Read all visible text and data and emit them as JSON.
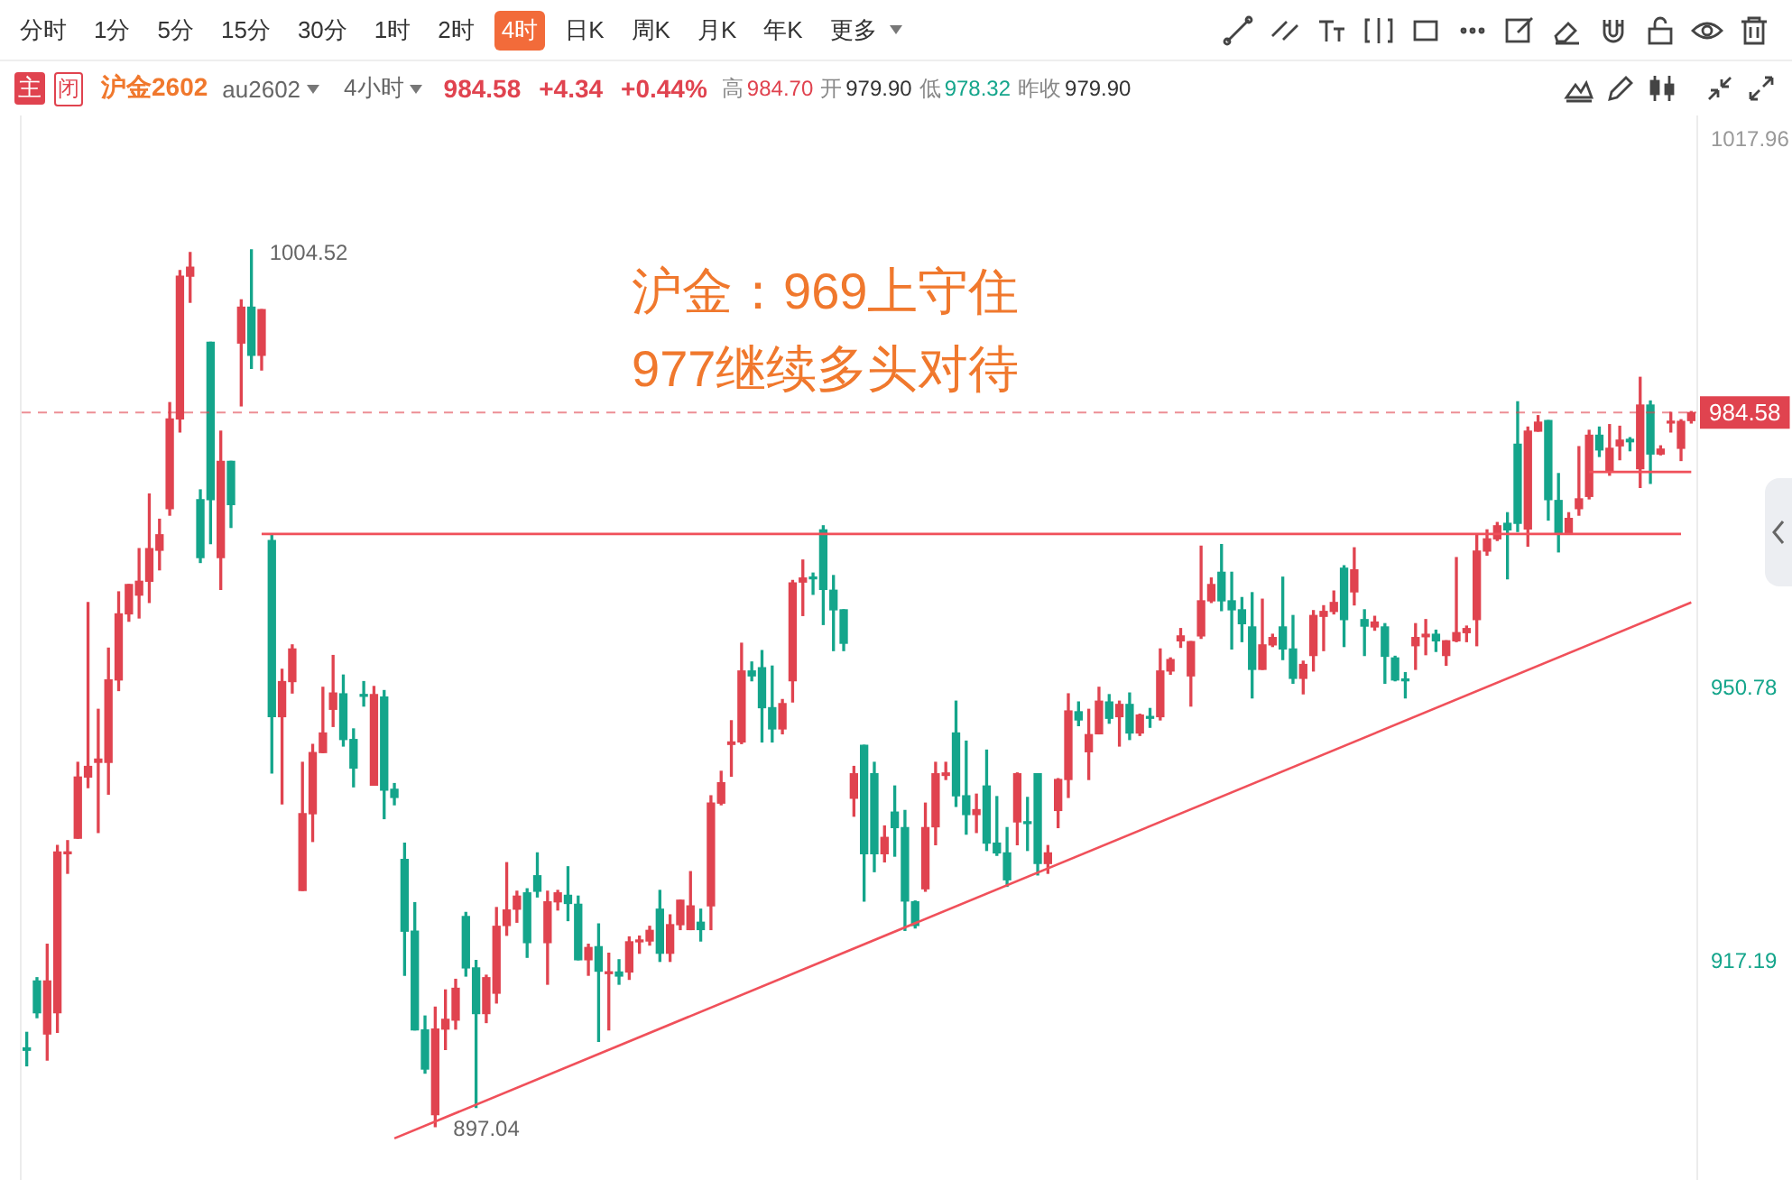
{
  "chart_data": {
    "type": "candlestick",
    "title": "沪金：969上守住",
    "subtitle": "977继续多头对待",
    "categories": [
      null,
      null,
      null,
      null,
      null,
      null,
      null,
      null,
      null,
      null,
      null,
      null,
      null,
      null,
      null,
      null,
      null,
      null,
      null,
      null,
      null,
      null,
      null,
      null,
      null,
      null,
      null,
      null,
      null,
      null,
      null,
      null,
      null,
      null,
      null,
      null,
      null,
      null,
      null,
      null,
      null,
      null,
      null,
      null,
      null,
      null,
      null,
      null,
      null,
      null,
      null,
      null,
      null,
      null,
      null,
      null,
      null,
      null,
      null,
      null,
      null,
      null,
      null,
      null,
      null,
      null,
      null,
      null,
      null,
      null,
      null,
      null,
      null,
      null,
      null,
      null,
      null,
      null,
      null,
      null,
      null,
      null,
      null,
      null,
      null,
      null,
      null,
      null,
      null,
      null,
      null,
      null,
      null,
      null,
      null,
      null,
      null,
      null,
      null,
      null,
      null,
      null,
      null,
      null,
      null,
      null,
      null,
      null,
      null,
      null,
      null,
      null,
      null,
      null,
      null,
      null,
      null,
      null,
      null,
      null,
      null,
      null,
      null,
      null,
      null,
      null,
      null,
      null,
      null,
      null,
      null,
      null,
      null,
      null,
      null,
      null,
      null,
      null,
      null,
      null,
      null,
      null,
      null,
      null,
      null,
      null,
      null,
      null,
      null,
      null,
      null,
      null,
      null,
      null,
      null,
      null,
      null,
      null,
      null,
      null,
      null,
      null,
      null,
      null
    ],
    "ohlc": [
      [
        906.7,
        908.6,
        904.5,
        906.4
      ],
      [
        914.9,
        915.3,
        910.4,
        911.0
      ],
      [
        908.4,
        919.4,
        905.2,
        914.9
      ],
      [
        911.0,
        931.5,
        908.6,
        930.7
      ],
      [
        930.5,
        932.1,
        928.1,
        930.6
      ],
      [
        932.4,
        941.7,
        932.4,
        939.9
      ],
      [
        939.9,
        961.3,
        938.6,
        941.2
      ],
      [
        941.7,
        948.2,
        933.1,
        942.1
      ],
      [
        941.7,
        955.7,
        937.8,
        951.8
      ],
      [
        951.8,
        962.6,
        950.5,
        959.9
      ],
      [
        959.9,
        963.5,
        959.0,
        963.5
      ],
      [
        962.2,
        967.9,
        959.4,
        963.9
      ],
      [
        963.9,
        974.6,
        961.3,
        967.9
      ],
      [
        967.7,
        971.5,
        965.3,
        969.6
      ],
      [
        972.8,
        985.8,
        972.0,
        983.8
      ],
      [
        983.8,
        1002.0,
        982.2,
        1001.3
      ],
      [
        1001.3,
        1004.2,
        998.1,
        1002.4
      ],
      [
        973.9,
        975.1,
        966.2,
        966.8
      ],
      [
        993.2,
        993.2,
        968.5,
        973.9
      ],
      [
        966.8,
        982.3,
        962.9,
        978.6
      ],
      [
        978.6,
        978.6,
        970.5,
        973.3
      ],
      [
        993.1,
        998.4,
        985.4,
        997.5
      ],
      [
        997.5,
        1004.52,
        990.0,
        991.6
      ],
      [
        991.6,
        997.2,
        989.8,
        997.2
      ],
      [
        968.9,
        969.5,
        940.4,
        947.3
      ],
      [
        947.3,
        953.1,
        936.6,
        951.6
      ],
      [
        951.6,
        956.1,
        950.2,
        955.6
      ],
      [
        926.0,
        941.7,
        926.0,
        935.4
      ],
      [
        935.4,
        943.9,
        932.0,
        942.9
      ],
      [
        942.9,
        950.9,
        942.9,
        945.3
      ],
      [
        948.2,
        954.8,
        946.1,
        950.2
      ],
      [
        950.1,
        952.4,
        943.7,
        944.5
      ],
      [
        944.5,
        945.8,
        938.7,
        941.0
      ],
      [
        950.0,
        951.6,
        948.6,
        949.8
      ],
      [
        938.9,
        951.0,
        938.9,
        950.0
      ],
      [
        949.7,
        950.5,
        934.8,
        938.3
      ],
      [
        938.4,
        939.1,
        936.5,
        937.4
      ],
      [
        929.8,
        931.8,
        915.6,
        921.0
      ],
      [
        921.0,
        924.5,
        908.9,
        908.9
      ],
      [
        908.9,
        910.6,
        903.6,
        904.1
      ],
      [
        898.5,
        911.7,
        897.04,
        909.0
      ],
      [
        909.0,
        913.8,
        906.5,
        910.2
      ],
      [
        910.1,
        915.1,
        909.0,
        914.0
      ],
      [
        922.8,
        923.3,
        915.5,
        916.5
      ],
      [
        916.5,
        917.4,
        899.4,
        910.9
      ],
      [
        910.9,
        915.6,
        909.8,
        915.3
      ],
      [
        913.4,
        923.9,
        912.2,
        921.6
      ],
      [
        921.7,
        929.4,
        920.5,
        923.6
      ],
      [
        923.7,
        925.9,
        922.1,
        925.3
      ],
      [
        925.7,
        926.2,
        917.8,
        919.6
      ],
      [
        927.8,
        930.6,
        925.2,
        925.9
      ],
      [
        919.6,
        925.9,
        914.5,
        924.6
      ],
      [
        924.6,
        926.0,
        923.6,
        925.7
      ],
      [
        925.4,
        928.9,
        922.3,
        924.4
      ],
      [
        924.3,
        925.3,
        917.5,
        917.5
      ],
      [
        917.5,
        919.4,
        915.6,
        919.0
      ],
      [
        919.1,
        921.9,
        907.5,
        916.1
      ],
      [
        915.8,
        918.3,
        908.9,
        916.0
      ],
      [
        916.0,
        917.5,
        914.5,
        915.5
      ],
      [
        916.0,
        920.3,
        915.1,
        919.7
      ],
      [
        919.7,
        920.4,
        918.3,
        919.8
      ],
      [
        919.8,
        921.6,
        919.3,
        921.1
      ],
      [
        923.7,
        926.0,
        917.3,
        918.3
      ],
      [
        918.3,
        923.0,
        917.3,
        921.8
      ],
      [
        921.8,
        924.8,
        921.2,
        924.8
      ],
      [
        921.2,
        928.3,
        921.2,
        924.1
      ],
      [
        922.1,
        923.7,
        919.8,
        921.2
      ],
      [
        924.1,
        937.6,
        921.2,
        936.7
      ],
      [
        936.7,
        940.6,
        936.5,
        939.2
      ],
      [
        943.9,
        946.8,
        940.0,
        944.2
      ],
      [
        944.2,
        956.3,
        944.0,
        952.9
      ],
      [
        952.9,
        954.0,
        951.7,
        952.3
      ],
      [
        953.3,
        955.4,
        944.2,
        948.4
      ],
      [
        948.4,
        953.5,
        944.2,
        945.8
      ],
      [
        945.8,
        949.4,
        945.2,
        948.9
      ],
      [
        951.7,
        964.0,
        949.1,
        963.7
      ],
      [
        963.8,
        966.5,
        959.7,
        964.3
      ],
      [
        964.3,
        964.9,
        962.3,
        964.2
      ],
      [
        970.2,
        970.7,
        958.6,
        962.9
      ],
      [
        962.8,
        964.6,
        955.4,
        960.4
      ],
      [
        960.4,
        960.4,
        955.4,
        956.3
      ],
      [
        937.3,
        941.2,
        935.1,
        940.3
      ],
      [
        943.8,
        943.8,
        924.7,
        930.5
      ],
      [
        940.3,
        941.7,
        928.3,
        930.5
      ],
      [
        930.5,
        933.9,
        929.5,
        932.5
      ],
      [
        935.6,
        938.8,
        930.2,
        933.7
      ],
      [
        933.7,
        935.8,
        921.1,
        924.7
      ],
      [
        924.6,
        924.7,
        921.4,
        921.7
      ],
      [
        926.2,
        936.7,
        925.9,
        933.7
      ],
      [
        933.8,
        941.7,
        931.6,
        940.3
      ],
      [
        940.1,
        941.7,
        939.6,
        940.4
      ],
      [
        945.3,
        949.2,
        936.3,
        937.6
      ],
      [
        937.6,
        944.3,
        932.9,
        935.3
      ],
      [
        935.3,
        937.8,
        933.1,
        935.9
      ],
      [
        938.8,
        943.2,
        930.9,
        931.8
      ],
      [
        931.8,
        937.5,
        930.3,
        930.6
      ],
      [
        930.6,
        933.7,
        926.5,
        927.3
      ],
      [
        934.4,
        940.4,
        931.6,
        940.3
      ],
      [
        934.3,
        937.4,
        930.9,
        934.2
      ],
      [
        940.3,
        940.3,
        927.9,
        929.3
      ],
      [
        929.3,
        931.5,
        928.1,
        930.6
      ],
      [
        935.8,
        939.7,
        933.7,
        939.6
      ],
      [
        939.6,
        950.1,
        937.4,
        948.0
      ],
      [
        947.9,
        949.1,
        946.2,
        946.9
      ],
      [
        943.0,
        948.2,
        939.6,
        945.1
      ],
      [
        945.2,
        950.9,
        945.2,
        949.2
      ],
      [
        949.1,
        950.0,
        946.5,
        947.1
      ],
      [
        947.3,
        949.2,
        943.7,
        948.8
      ],
      [
        948.8,
        950.2,
        944.5,
        945.3
      ],
      [
        945.3,
        947.6,
        945.0,
        947.5
      ],
      [
        947.3,
        948.3,
        946.0,
        947.1
      ],
      [
        947.3,
        955.6,
        946.9,
        952.9
      ],
      [
        952.9,
        954.5,
        952.5,
        954.3
      ],
      [
        956.6,
        958.1,
        955.8,
        957.2
      ],
      [
        952.3,
        956.5,
        948.6,
        956.5
      ],
      [
        957.2,
        968.2,
        956.9,
        961.5
      ],
      [
        961.5,
        964.3,
        961.3,
        963.5
      ],
      [
        965.0,
        968.4,
        960.3,
        961.5
      ],
      [
        961.5,
        965.0,
        955.6,
        960.4
      ],
      [
        960.4,
        961.9,
        956.5,
        958.7
      ],
      [
        958.3,
        962.5,
        949.6,
        953.1
      ],
      [
        953.1,
        961.7,
        953.1,
        956.1
      ],
      [
        956.1,
        957.4,
        955.9,
        957.0
      ],
      [
        958.3,
        964.4,
        954.3,
        955.6
      ],
      [
        955.6,
        959.7,
        951.4,
        952.0
      ],
      [
        952.0,
        954.1,
        950.1,
        953.7
      ],
      [
        954.8,
        960.3,
        952.9,
        959.7
      ],
      [
        959.6,
        960.9,
        955.4,
        960.2
      ],
      [
        960.2,
        962.7,
        959.9,
        961.3
      ],
      [
        965.5,
        965.8,
        955.9,
        959.2
      ],
      [
        962.6,
        968.0,
        961.0,
        965.3
      ],
      [
        959.2,
        960.4,
        954.8,
        958.4
      ],
      [
        958.3,
        959.6,
        957.9,
        958.9
      ],
      [
        958.3,
        958.7,
        951.4,
        954.7
      ],
      [
        954.5,
        954.7,
        951.7,
        951.8
      ],
      [
        951.8,
        952.7,
        949.6,
        951.7
      ],
      [
        956.0,
        958.7,
        953.1,
        957.0
      ],
      [
        957.1,
        959.2,
        954.9,
        957.4
      ],
      [
        957.4,
        957.9,
        955.3,
        956.6
      ],
      [
        954.8,
        956.6,
        953.6,
        956.6
      ],
      [
        956.6,
        966.8,
        956.5,
        957.6
      ],
      [
        957.6,
        958.4,
        956.5,
        958.1
      ],
      [
        959.2,
        969.6,
        956.0,
        967.6
      ],
      [
        967.6,
        970.2,
        967.1,
        969.1
      ],
      [
        969.1,
        971.1,
        968.9,
        970.7
      ],
      [
        971.0,
        972.3,
        964.2,
        970.2
      ],
      [
        980.7,
        985.9,
        970.0,
        971.0
      ],
      [
        970.3,
        982.8,
        968.2,
        982.3
      ],
      [
        982.3,
        984.2,
        982.3,
        983.4
      ],
      [
        983.6,
        983.6,
        971.4,
        973.9
      ],
      [
        973.8,
        977.1,
        967.5,
        969.7
      ],
      [
        969.7,
        972.3,
        969.7,
        971.6
      ],
      [
        972.8,
        980.4,
        972.0,
        974.0
      ],
      [
        974.3,
        982.4,
        974.0,
        981.8
      ],
      [
        981.8,
        982.8,
        979.2,
        980.0
      ],
      [
        977.4,
        983.1,
        976.9,
        980.2
      ],
      [
        980.5,
        982.9,
        978.8,
        981.2
      ],
      [
        981.3,
        981.5,
        979.9,
        981.0
      ],
      [
        977.7,
        988.9,
        975.4,
        985.5
      ],
      [
        985.5,
        986.0,
        975.9,
        979.5
      ],
      [
        979.5,
        980.5,
        979.4,
        980.1
      ],
      [
        983.3,
        984.6,
        982.2,
        983.5
      ],
      [
        980.2,
        983.7,
        978.7,
        983.5
      ],
      [
        983.6,
        984.7,
        983.3,
        984.58
      ]
    ],
    "series": [
      {
        "type": "line",
        "color": "#f0505a",
        "values": [
          null,
          null,
          null,
          null,
          null,
          null,
          null,
          null,
          null,
          null,
          null,
          null,
          null,
          null,
          null,
          null,
          null,
          null,
          null,
          null,
          null,
          null,
          null,
          969.7,
          null,
          null,
          null,
          null,
          null,
          null,
          null,
          null,
          null,
          null,
          null,
          null,
          null,
          null,
          null,
          null,
          null,
          null,
          null,
          null,
          null,
          null,
          null,
          null,
          null,
          null,
          null,
          null,
          null,
          null,
          null,
          null,
          null,
          null,
          null,
          null,
          null,
          null,
          null,
          null,
          null,
          null,
          null,
          null,
          null,
          null,
          null,
          null,
          null,
          null,
          null,
          null,
          null,
          null,
          null,
          null,
          null,
          null,
          null,
          null,
          null,
          null,
          null,
          null,
          null,
          null,
          null,
          null,
          null,
          null,
          null,
          null,
          null,
          null,
          null,
          null,
          null,
          null,
          null,
          null,
          null,
          null,
          null,
          null,
          null,
          null,
          null,
          null,
          null,
          null,
          null,
          null,
          null,
          null,
          null,
          null,
          null,
          null,
          null,
          null,
          null,
          null,
          null,
          null,
          null,
          null,
          null,
          null,
          null,
          null,
          null,
          null,
          null,
          null,
          null,
          null,
          null,
          null,
          null,
          null,
          null,
          null,
          null,
          null,
          null,
          null,
          null,
          null,
          null,
          null,
          null,
          null,
          null,
          null,
          null,
          null,
          null,
          null,
          969.7,
          null
        ]
      },
      {
        "type": "line",
        "color": "#f0505a",
        "values": [
          null,
          null,
          null,
          null,
          null,
          null,
          null,
          null,
          null,
          null,
          null,
          null,
          null,
          null,
          null,
          null,
          null,
          null,
          null,
          null,
          null,
          null,
          null,
          null,
          null,
          null,
          null,
          null,
          null,
          null,
          null,
          null,
          null,
          null,
          null,
          null,
          null,
          null,
          null,
          null,
          null,
          null,
          null,
          null,
          null,
          null,
          null,
          null,
          null,
          null,
          null,
          null,
          null,
          null,
          null,
          null,
          null,
          null,
          null,
          null,
          null,
          null,
          null,
          null,
          null,
          null,
          null,
          null,
          null,
          null,
          null,
          null,
          null,
          null,
          null,
          null,
          null,
          null,
          null,
          null,
          null,
          null,
          null,
          null,
          null,
          null,
          null,
          null,
          null,
          null,
          null,
          null,
          null,
          null,
          null,
          null,
          null,
          null,
          null,
          null,
          null,
          null,
          null,
          null,
          null,
          null,
          null,
          null,
          null,
          null,
          null,
          null,
          null,
          null,
          null,
          null,
          null,
          null,
          null,
          null,
          null,
          null,
          null,
          null,
          null,
          null,
          null,
          null,
          null,
          null,
          null,
          null,
          null,
          null,
          null,
          null,
          null,
          null,
          null,
          null,
          null,
          null,
          null,
          null,
          null,
          null,
          null,
          null,
          null,
          null,
          null,
          null,
          null,
          977.3,
          null,
          null,
          null,
          null,
          null,
          null,
          null,
          null,
          null,
          977.3
        ]
      },
      {
        "type": "line",
        "color": "#f0505a",
        "values": [
          null,
          null,
          null,
          null,
          null,
          null,
          null,
          null,
          null,
          null,
          null,
          null,
          null,
          null,
          null,
          null,
          null,
          null,
          null,
          null,
          null,
          null,
          null,
          null,
          null,
          null,
          null,
          null,
          null,
          null,
          null,
          null,
          null,
          null,
          null,
          null,
          895.6,
          null,
          null,
          null,
          null,
          null,
          null,
          null,
          null,
          null,
          null,
          null,
          null,
          null,
          null,
          null,
          null,
          null,
          null,
          null,
          null,
          null,
          null,
          null,
          null,
          null,
          null,
          null,
          null,
          null,
          null,
          null,
          null,
          null,
          null,
          null,
          null,
          null,
          null,
          null,
          null,
          null,
          null,
          null,
          null,
          null,
          null,
          null,
          null,
          null,
          null,
          null,
          null,
          null,
          null,
          null,
          null,
          null,
          null,
          null,
          null,
          null,
          null,
          null,
          null,
          null,
          null,
          null,
          null,
          null,
          null,
          null,
          null,
          null,
          null,
          null,
          null,
          null,
          null,
          null,
          null,
          null,
          null,
          null,
          null,
          null,
          null,
          null,
          null,
          null,
          null,
          null,
          null,
          null,
          null,
          null,
          null,
          null,
          null,
          null,
          null,
          null,
          null,
          null,
          null,
          null,
          null,
          null,
          null,
          null,
          null,
          null,
          null,
          null,
          null,
          null,
          null,
          null,
          null,
          null,
          null,
          null,
          null,
          null,
          null,
          null,
          null,
          961.3
        ]
      }
    ],
    "ref_lines": [
      {
        "axis": "y",
        "value": 984.58,
        "label": "984.58",
        "color": "#e0434f",
        "line_style": "dashed"
      }
    ],
    "ylim": [
      890.5,
      1021.0
    ],
    "yticks": [
      917.19,
      950.78,
      1017.96
    ],
    "tick_labels": "y",
    "grid": false,
    "legend": false,
    "marker": "none",
    "annotations": [
      "分时",
      "1分",
      "5分",
      "15分",
      "30分",
      "1时",
      "2时",
      "4时",
      "日K",
      "周K",
      "月K",
      "年K",
      "更多",
      "主",
      "闭",
      "沪金2602",
      "au2602",
      "4小时",
      "984.58",
      "+4.34",
      "+0.44%",
      "高",
      "984.70",
      "开",
      "979.90",
      "低",
      "978.32",
      "昨收",
      "979.90",
      "1004.52",
      "897.04"
    ]
  }
}
